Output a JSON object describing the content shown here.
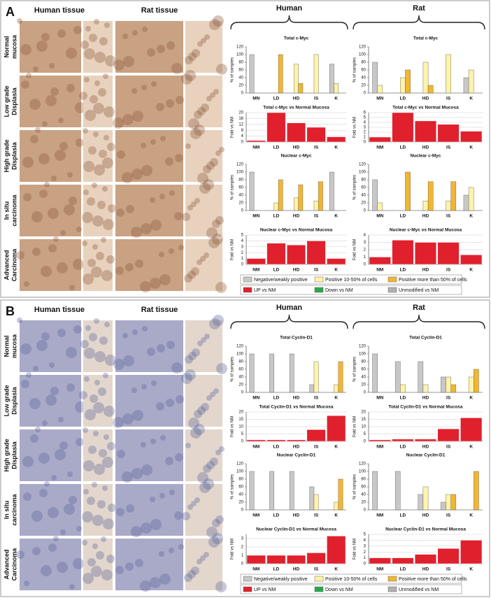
{
  "panels": [
    {
      "letter": "A",
      "tissue_headers": [
        "Human tissue",
        "Rat tissue"
      ],
      "species": [
        "Human",
        "Rat"
      ],
      "rows": [
        [
          "Normal",
          "mucosa"
        ],
        [
          "Low grade",
          "Displasia"
        ],
        [
          "High grade",
          "Displasia"
        ],
        [
          "In situ",
          "carcinoma"
        ],
        [
          "Advanced",
          "Carcinoma"
        ]
      ],
      "fold_legend": [
        {
          "name": "UP vs NM",
          "color": "#e0202c"
        },
        {
          "name": "Down vs NM",
          "color": "#2aa84a"
        },
        {
          "name": "Unmodified vs NM",
          "color": "#b0b0b0"
        }
      ]
    },
    {
      "letter": "B",
      "tissue_headers": [
        "Human tissue",
        "Rat tissue"
      ],
      "species": [
        "Human",
        "Rat"
      ],
      "rows": [
        [
          "Normal",
          "mucosa"
        ],
        [
          "Low grade",
          "Displasia"
        ],
        [
          "High grade",
          "Displasia"
        ],
        [
          "In situ",
          "carcinoma"
        ],
        [
          "Advanced",
          "Carcinoma"
        ]
      ],
      "fold_legend": [
        {
          "name": "UP vs NM",
          "color": "#e0202c"
        },
        {
          "name": "Down vs NM",
          "color": "#2aa84a"
        },
        {
          "name": "Unmodified vs NM",
          "color": "#b0b0b0"
        }
      ]
    }
  ],
  "chart_data": [
    {
      "type": "bar",
      "title": "Total c-Myc",
      "ylabel": "% of samples",
      "categories": [
        "MN",
        "LD",
        "HD",
        "IS",
        "K"
      ],
      "ylim": [
        0,
        120
      ],
      "yticks": [
        0,
        20,
        40,
        60,
        80,
        100,
        120
      ],
      "series": [
        {
          "name": "Negative/weakly positive",
          "color": "#c8c8c8",
          "values": [
            100,
            0,
            0,
            0,
            75
          ]
        },
        {
          "name": "Positive 10-50% of cells",
          "color": "#fff3a8",
          "values": [
            0,
            0,
            75,
            100,
            25
          ]
        },
        {
          "name": "Positive more than 50% of cells",
          "color": "#f2b630",
          "values": [
            0,
            100,
            25,
            0,
            0
          ]
        }
      ]
    },
    {
      "type": "bar",
      "title": "Total c-Myc vs Normal Mucosa",
      "ylabel": "Fold vs NM",
      "categories": [
        "NM",
        "LD",
        "HD",
        "IS",
        "K"
      ],
      "values": [
        1,
        20,
        13,
        10,
        3.5
      ],
      "color": "#e0202c",
      "ylim": [
        0,
        20
      ],
      "yticks": [
        0,
        4,
        8,
        12,
        16,
        20
      ],
      "grid": true
    },
    {
      "type": "bar",
      "title": "Nuclear c-Myc",
      "ylabel": "% of samples",
      "categories": [
        "MN",
        "LD",
        "HD",
        "IS",
        "K"
      ],
      "ylim": [
        0,
        120
      ],
      "yticks": [
        0,
        20,
        40,
        60,
        80,
        100,
        120
      ],
      "series": [
        {
          "name": "Negative/weakly positive",
          "color": "#c8c8c8",
          "values": [
            100,
            0,
            0,
            0,
            100
          ]
        },
        {
          "name": "Positive 10-50% of cells",
          "color": "#fff3a8",
          "values": [
            0,
            20,
            33,
            25,
            0
          ]
        },
        {
          "name": "Positive more than 50% of cells",
          "color": "#f2b630",
          "values": [
            0,
            80,
            67,
            75,
            0
          ]
        }
      ]
    },
    {
      "type": "bar",
      "title": "Nuclear c-Myc vs Normal Mucosa",
      "ylabel": "Fold vs NM",
      "categories": [
        "NM",
        "LD",
        "HD",
        "IS",
        "K"
      ],
      "values": [
        1,
        3.6,
        3.3,
        4,
        1
      ],
      "color": "#e0202c",
      "ylim": [
        0,
        5
      ],
      "yticks": [
        0,
        1,
        2,
        3,
        4,
        5
      ],
      "grid": true
    },
    {
      "type": "bar",
      "title": "Total c-Myc",
      "ylabel": "% of samples",
      "categories": [
        "MN",
        "LD",
        "HD",
        "IS",
        "K"
      ],
      "ylim": [
        0,
        120
      ],
      "yticks": [
        0,
        20,
        40,
        60,
        80,
        100,
        120
      ],
      "series": [
        {
          "name": "Negative/weakly positive",
          "color": "#c8c8c8",
          "values": [
            80,
            0,
            0,
            0,
            40
          ]
        },
        {
          "name": "Positive 10-50% of cells",
          "color": "#fff3a8",
          "values": [
            20,
            40,
            80,
            100,
            60
          ]
        },
        {
          "name": "Positive more than 50% of cells",
          "color": "#f2b630",
          "values": [
            0,
            60,
            20,
            0,
            0
          ]
        }
      ]
    },
    {
      "type": "bar",
      "title": "Total c-Myc vs Normal Mucosa",
      "ylabel": "Fold vs NM",
      "categories": [
        "NM",
        "LD",
        "HD",
        "IS",
        "K"
      ],
      "values": [
        1,
        6,
        4.3,
        3.6,
        2.2
      ],
      "color": "#e0202c",
      "ylim": [
        0,
        6
      ],
      "yticks": [
        0,
        1,
        2,
        3,
        4,
        5,
        6
      ],
      "grid": true
    },
    {
      "type": "bar",
      "title": "Nuclear c-Myc",
      "ylabel": "% of samples",
      "categories": [
        "MN",
        "LD",
        "HD",
        "IS",
        "K"
      ],
      "ylim": [
        0,
        120
      ],
      "yticks": [
        0,
        20,
        40,
        60,
        80,
        100,
        120
      ],
      "series": [
        {
          "name": "Negative/weakly positive",
          "color": "#c8c8c8",
          "values": [
            80,
            0,
            0,
            0,
            40
          ]
        },
        {
          "name": "Positive 10-50% of cells",
          "color": "#fff3a8",
          "values": [
            20,
            0,
            25,
            25,
            60
          ]
        },
        {
          "name": "Positive more than 50% of cells",
          "color": "#f2b630",
          "values": [
            0,
            100,
            75,
            75,
            0
          ]
        }
      ]
    },
    {
      "type": "bar",
      "title": "Nuclear c-Myc vs Normal Mucosa",
      "ylabel": "Fold vs NM",
      "categories": [
        "NM",
        "LD",
        "HD",
        "IS",
        "K"
      ],
      "values": [
        1,
        3.3,
        3,
        3,
        1.3
      ],
      "color": "#e0202c",
      "ylim": [
        0,
        4
      ],
      "yticks": [
        0,
        1,
        2,
        3,
        4
      ],
      "grid": true
    },
    {
      "type": "bar",
      "title": "Total Cyclin-D1",
      "ylabel": "% of samples",
      "categories": [
        "MN",
        "LD",
        "HD",
        "IS",
        "K"
      ],
      "ylim": [
        0,
        120
      ],
      "yticks": [
        0,
        20,
        40,
        60,
        80,
        100,
        120
      ],
      "series": [
        {
          "name": "Negative/weakly positive",
          "color": "#c8c8c8",
          "values": [
            100,
            100,
            100,
            20,
            0
          ]
        },
        {
          "name": "Positive 10-50% of cells",
          "color": "#fff3a8",
          "values": [
            0,
            0,
            0,
            80,
            20
          ]
        },
        {
          "name": "Positive more than 50% of cells",
          "color": "#f2b630",
          "values": [
            0,
            0,
            0,
            0,
            80
          ]
        }
      ]
    },
    {
      "type": "bar",
      "title": "Total Cyclin-D1 vs Normal Mucosa",
      "ylabel": "Fold vs NM",
      "categories": [
        "NM",
        "LD",
        "HD",
        "IS",
        "K"
      ],
      "values": [
        1,
        1,
        1,
        8,
        17.5
      ],
      "color": "#e0202c",
      "ylim": [
        0,
        20
      ],
      "yticks": [
        0,
        5,
        10,
        15,
        20
      ],
      "grid": true
    },
    {
      "type": "bar",
      "title": "Nuclear Cyclin-D1",
      "ylabel": "% of samples",
      "categories": [
        "NM",
        "LD",
        "HD",
        "IS",
        "K"
      ],
      "ylim": [
        0,
        120
      ],
      "yticks": [
        0,
        20,
        40,
        60,
        80,
        100,
        120
      ],
      "series": [
        {
          "name": "Negative/weakly positive",
          "color": "#c8c8c8",
          "values": [
            100,
            100,
            100,
            60,
            0
          ]
        },
        {
          "name": "Positive 10-50% of cells",
          "color": "#fff3a8",
          "values": [
            0,
            0,
            0,
            40,
            20
          ]
        },
        {
          "name": "Positive more than 50% of cells",
          "color": "#f2b630",
          "values": [
            0,
            0,
            0,
            0,
            80
          ]
        }
      ]
    },
    {
      "type": "bar",
      "title": "Nuclear Cyclin-D1 vs Normal Mucosa",
      "ylabel": "Fold vs NM",
      "categories": [
        "NM",
        "LD",
        "HD",
        "IS",
        "K"
      ],
      "values": [
        1,
        1,
        1,
        1.3,
        3.3
      ],
      "color": "#e0202c",
      "ylim": [
        0,
        3.5
      ],
      "yticks": [
        0,
        1,
        2,
        3
      ],
      "grid": true
    },
    {
      "type": "bar",
      "title": "Total Cyclin-D1",
      "ylabel": "% of samples",
      "categories": [
        "MN",
        "LD",
        "HD",
        "IS",
        "K"
      ],
      "ylim": [
        0,
        120
      ],
      "yticks": [
        0,
        20,
        40,
        60,
        80,
        100,
        120
      ],
      "series": [
        {
          "name": "Negative/weakly positive",
          "color": "#c8c8c8",
          "values": [
            100,
            80,
            80,
            40,
            0
          ]
        },
        {
          "name": "Positive 10-50% of cells",
          "color": "#fff3a8",
          "values": [
            0,
            20,
            20,
            40,
            40
          ]
        },
        {
          "name": "Positive more than 50% of cells",
          "color": "#f2b630",
          "values": [
            0,
            0,
            0,
            20,
            60
          ]
        }
      ]
    },
    {
      "type": "bar",
      "title": "Total Cyclin-D1 vs Normal Mucosa",
      "ylabel": "Fold vs NM",
      "categories": [
        "NM",
        "LD",
        "HD",
        "IS",
        "K"
      ],
      "values": [
        1,
        1.5,
        1.5,
        8.5,
        16
      ],
      "color": "#e0202c",
      "ylim": [
        0,
        20
      ],
      "yticks": [
        0,
        5,
        10,
        15,
        20
      ],
      "grid": true
    },
    {
      "type": "bar",
      "title": "Nuclear Cyclin-D1",
      "ylabel": "% of samples",
      "categories": [
        "NM",
        "LD",
        "HD",
        "IS",
        "K"
      ],
      "ylim": [
        0,
        120
      ],
      "yticks": [
        0,
        20,
        40,
        60,
        80,
        100,
        120
      ],
      "series": [
        {
          "name": "Negative/weakly positive",
          "color": "#c8c8c8",
          "values": [
            100,
            100,
            40,
            20,
            0
          ]
        },
        {
          "name": "Positive 10-50% of cells",
          "color": "#fff3a8",
          "values": [
            0,
            0,
            60,
            40,
            0
          ]
        },
        {
          "name": "Positive more than 50% of cells",
          "color": "#f2b630",
          "values": [
            0,
            0,
            0,
            40,
            100
          ]
        }
      ]
    },
    {
      "type": "bar",
      "title": "Nuclear Cyclin-D1 vs Normal Mucosa",
      "ylabel": "Fold vs NM",
      "categories": [
        "NM",
        "LD",
        "HD",
        "IS",
        "K"
      ],
      "values": [
        1,
        1,
        1.6,
        2.6,
        4
      ],
      "color": "#e0202c",
      "ylim": [
        0,
        5
      ],
      "yticks": [
        0,
        1,
        2,
        3,
        4,
        5
      ],
      "grid": true
    }
  ]
}
